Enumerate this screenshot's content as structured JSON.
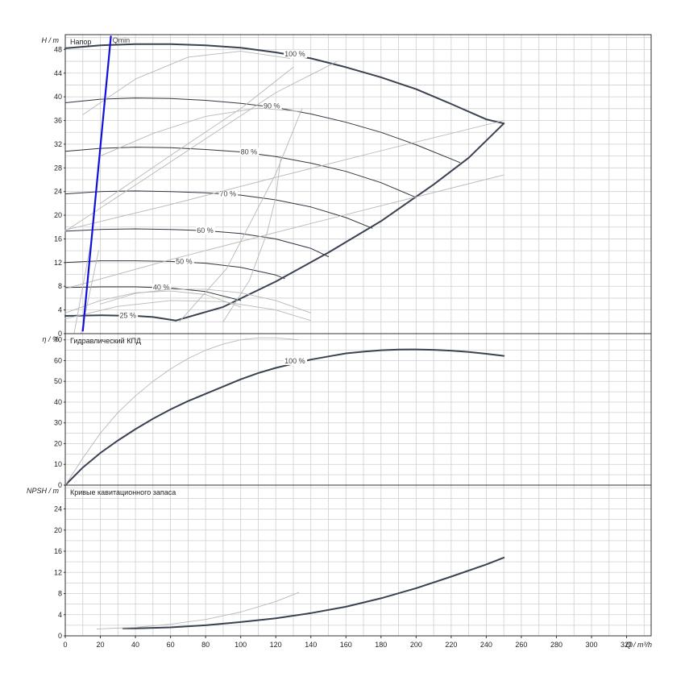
{
  "chart_data": [
    {
      "type": "line",
      "title": "Напор",
      "ylabel": "H / m",
      "xlim": [
        0,
        334
      ],
      "ylim": [
        0,
        50.5
      ],
      "yticks": [
        0,
        4,
        8,
        12,
        16,
        20,
        24,
        28,
        32,
        36,
        40,
        44,
        48
      ],
      "grid": true,
      "series": [
        {
          "name": "100 %",
          "x": [
            0,
            20,
            40,
            60,
            80,
            100,
            120,
            140,
            160,
            180,
            200,
            220,
            240,
            250
          ],
          "y": [
            48.2,
            48.7,
            48.9,
            48.9,
            48.7,
            48.3,
            47.5,
            46.5,
            45.0,
            43.3,
            41.3,
            38.8,
            36.2,
            35.5
          ],
          "style": "thick"
        },
        {
          "name": "90 %",
          "x": [
            0,
            20,
            40,
            60,
            80,
            100,
            120,
            140,
            160,
            180,
            200,
            225
          ],
          "y": [
            39.0,
            39.6,
            39.8,
            39.7,
            39.4,
            38.9,
            38.2,
            37.1,
            35.7,
            34.0,
            31.9,
            28.9
          ],
          "style": "thin"
        },
        {
          "name": "80 %",
          "x": [
            0,
            20,
            40,
            60,
            80,
            100,
            120,
            140,
            160,
            180,
            200
          ],
          "y": [
            30.8,
            31.3,
            31.5,
            31.4,
            31.1,
            30.7,
            29.9,
            28.8,
            27.4,
            25.5,
            23.0
          ],
          "style": "thin"
        },
        {
          "name": "70 %",
          "x": [
            0,
            20,
            40,
            60,
            80,
            100,
            120,
            140,
            160,
            175
          ],
          "y": [
            23.6,
            24.0,
            24.1,
            24.0,
            23.8,
            23.4,
            22.6,
            21.4,
            19.6,
            17.8
          ],
          "style": "thin"
        },
        {
          "name": "60 %",
          "x": [
            0,
            20,
            40,
            60,
            80,
            100,
            120,
            140,
            150
          ],
          "y": [
            17.3,
            17.6,
            17.7,
            17.6,
            17.4,
            16.9,
            16.0,
            14.4,
            13.0
          ],
          "style": "thin"
        },
        {
          "name": "50 %",
          "x": [
            0,
            20,
            40,
            60,
            80,
            100,
            120,
            125
          ],
          "y": [
            12.0,
            12.3,
            12.3,
            12.2,
            11.9,
            11.2,
            9.9,
            9.3
          ],
          "style": "thin"
        },
        {
          "name": "40 %",
          "x": [
            0,
            20,
            40,
            60,
            80,
            100
          ],
          "y": [
            7.8,
            7.9,
            7.9,
            7.7,
            7.1,
            5.6
          ],
          "style": "thin"
        },
        {
          "name": "25 %",
          "x": [
            0,
            20,
            40,
            50,
            63
          ],
          "y": [
            3.0,
            3.1,
            3.0,
            2.8,
            2.2
          ],
          "style": "thick"
        },
        {
          "name": "",
          "x": [
            63,
            90,
            120,
            150,
            180,
            210,
            230,
            250
          ],
          "y": [
            2.2,
            4.5,
            8.8,
            13.7,
            19.0,
            25.2,
            29.7,
            35.5
          ],
          "style": "thick"
        },
        {
          "name": "",
          "x": [
            0,
            60,
            120,
            180,
            250
          ],
          "y": [
            17.5,
            21.8,
            26.4,
            30.9,
            36.0
          ],
          "style": "faint"
        },
        {
          "name": "",
          "x": [
            0,
            60,
            120,
            180,
            250
          ],
          "y": [
            7.6,
            12.5,
            17.1,
            21.6,
            26.8
          ],
          "style": "faint"
        },
        {
          "name": "",
          "x": [
            0,
            40,
            80,
            120,
            155
          ],
          "y": [
            17.3,
            25.1,
            32.9,
            40.7,
            46.0
          ],
          "style": "faint"
        },
        {
          "name": "",
          "x": [
            20,
            60,
            100,
            130
          ],
          "y": [
            22.0,
            30.1,
            38.0,
            45.0
          ],
          "style": "faint"
        },
        {
          "name": "",
          "x": [
            65,
            92,
            120,
            135
          ],
          "y": [
            2.0,
            11.0,
            27.0,
            38.0
          ],
          "style": "faint"
        },
        {
          "name": "",
          "x": [
            90,
            105,
            115,
            120,
            123
          ],
          "y": [
            2.0,
            9.0,
            17.0,
            23.0,
            30.0
          ],
          "style": "faint"
        },
        {
          "name": "",
          "x": [
            20,
            40,
            60,
            80,
            100,
            120,
            140
          ],
          "y": [
            5.0,
            6.8,
            7.5,
            7.5,
            6.9,
            5.6,
            3.5
          ],
          "style": "faint"
        },
        {
          "name": "",
          "x": [
            0,
            20,
            40,
            60,
            80,
            100
          ],
          "y": [
            3.5,
            5.6,
            6.9,
            7.2,
            6.6,
            4.5
          ],
          "style": "faint"
        },
        {
          "name": "",
          "x": [
            0,
            30,
            60,
            90,
            120,
            140
          ],
          "y": [
            2.5,
            4.6,
            5.6,
            5.4,
            4.0,
            2.2
          ],
          "style": "faint"
        },
        {
          "name": "",
          "x": [
            20,
            50,
            80,
            110,
            135
          ],
          "y": [
            30.0,
            33.8,
            36.7,
            38.1,
            37.5
          ],
          "style": "faint"
        },
        {
          "name": "",
          "x": [
            10,
            40,
            70,
            100,
            128
          ],
          "y": [
            37.0,
            43.0,
            46.7,
            47.7,
            46.5
          ],
          "style": "faint"
        },
        {
          "name": "",
          "x": [
            5,
            10,
            15
          ],
          "y": [
            0,
            8,
            16
          ],
          "style": "faint"
        },
        {
          "name": "",
          "x": [
            9,
            14,
            19
          ],
          "y": [
            0,
            7,
            14
          ],
          "style": "faint"
        },
        {
          "name": "Qmin",
          "x": [
            10,
            26
          ],
          "y": [
            0.5,
            50.2
          ],
          "style": "blue"
        }
      ]
    },
    {
      "type": "line",
      "title": "Гидравлический КПД",
      "ylabel": "η / %",
      "xlim": [
        0,
        334
      ],
      "ylim": [
        0,
        73
      ],
      "yticks": [
        0,
        10,
        20,
        30,
        40,
        50,
        60,
        70
      ],
      "grid": true,
      "series": [
        {
          "name": "100 %",
          "x": [
            0,
            10,
            20,
            30,
            40,
            50,
            60,
            70,
            80,
            90,
            100,
            110,
            120,
            130,
            140,
            150,
            160,
            170,
            180,
            190,
            200,
            210,
            220,
            230,
            240,
            250
          ],
          "y": [
            0,
            8.5,
            15.5,
            21.5,
            27.0,
            32.0,
            36.5,
            40.5,
            44.0,
            47.5,
            51.0,
            54.0,
            56.5,
            58.5,
            60.5,
            62.0,
            63.5,
            64.3,
            65.0,
            65.3,
            65.4,
            65.2,
            64.8,
            64.2,
            63.3,
            62.3
          ],
          "style": "thick"
        },
        {
          "name": "",
          "x": [
            0,
            10,
            20,
            30,
            40,
            50,
            60,
            70,
            80,
            90,
            100,
            110,
            120,
            133
          ],
          "y": [
            0,
            13.0,
            25.0,
            35.0,
            43.0,
            50.0,
            56.0,
            61.0,
            65.0,
            68.0,
            70.0,
            71.0,
            71.0,
            70.0
          ],
          "style": "faint"
        }
      ]
    },
    {
      "type": "line",
      "title": "Кривые кавитационного запаса",
      "ylabel": "NPSH / m",
      "xlabel": "Q / m³/h",
      "xlim": [
        0,
        334
      ],
      "ylim": [
        0,
        28.5
      ],
      "xticks": [
        0,
        20,
        40,
        60,
        80,
        100,
        120,
        140,
        160,
        180,
        200,
        220,
        240,
        260,
        280,
        300,
        320
      ],
      "yticks": [
        0,
        4,
        8,
        12,
        16,
        20,
        24
      ],
      "grid": true,
      "series": [
        {
          "name": "",
          "x": [
            33,
            40,
            60,
            80,
            100,
            120,
            140,
            160,
            180,
            200,
            220,
            240,
            250
          ],
          "y": [
            1.4,
            1.4,
            1.6,
            2.0,
            2.6,
            3.3,
            4.3,
            5.5,
            7.1,
            9.0,
            11.2,
            13.5,
            14.8
          ],
          "style": "thick"
        },
        {
          "name": "",
          "x": [
            18,
            40,
            60,
            80,
            100,
            120,
            133
          ],
          "y": [
            1.3,
            1.6,
            2.2,
            3.1,
            4.5,
            6.5,
            8.2
          ],
          "style": "faint"
        }
      ]
    }
  ]
}
